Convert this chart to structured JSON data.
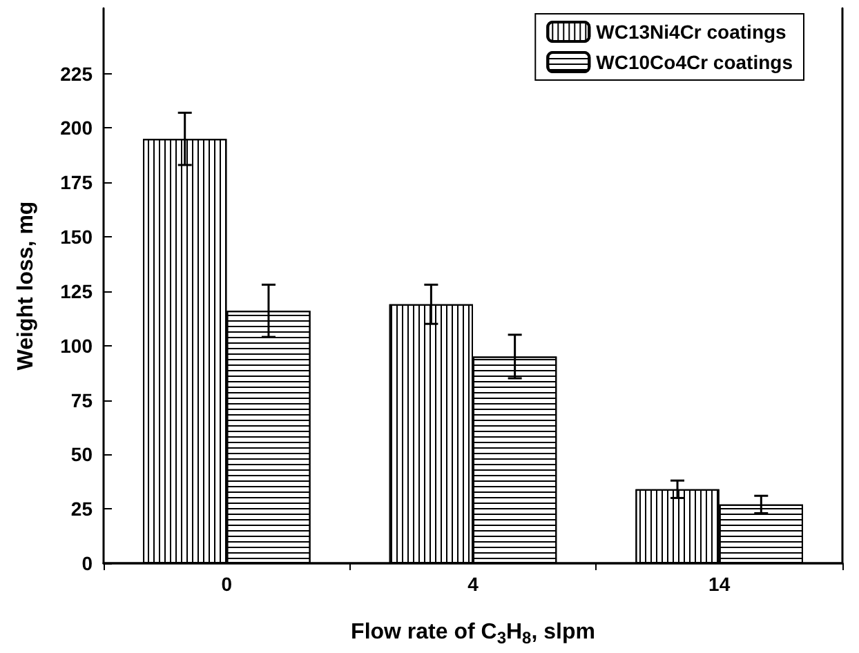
{
  "chart_data": {
    "type": "bar",
    "xlabel": "Flow rate of C$_{3}$H$_{8}$, slpm",
    "ylabel": "Weight loss, mg",
    "categories": [
      "0",
      "4",
      "14"
    ],
    "series": [
      {
        "name": "WC13Ni4Cr coatings",
        "color": "#ffffff",
        "values": [
          195,
          119,
          34
        ],
        "errors": [
          12,
          9,
          4
        ]
      },
      {
        "name": "WC10Co4Cr coatings",
        "color": "#ffffff",
        "values": [
          116,
          95,
          27
        ],
        "errors": [
          12,
          10,
          4
        ]
      }
    ],
    "ylim": [
      0,
      255
    ],
    "yticks": [
      0,
      25,
      50,
      75,
      100,
      125,
      150,
      175,
      200,
      225
    ],
    "grid": false,
    "legend": "top right"
  }
}
